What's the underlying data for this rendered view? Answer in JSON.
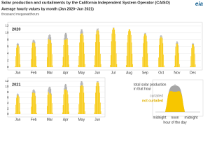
{
  "logo": "eia",
  "title": "Solar production and curtailments by the California Independent System Operator (CAISO)",
  "subtitle": "Average hourly values by month (Jan 2020–Jun 2021)",
  "unit": "thousand megawatthours",
  "chart_data": [
    {
      "type": "bar",
      "stacked": true,
      "label": "2020",
      "categories": [
        "Jan",
        "Feb",
        "Mar",
        "Apr",
        "May",
        "Jun",
        "Jul",
        "Aug",
        "Sep",
        "Oct",
        "Nov",
        "Dec"
      ],
      "ylim": [
        0,
        12
      ],
      "yticks": [
        0,
        2,
        4,
        6,
        8,
        10,
        12
      ],
      "grid": true,
      "series": [
        {
          "name": "not curtailed",
          "color": "#f7c600",
          "values": [
            [
              0,
              0,
              0,
              0,
              0,
              0,
              0,
              0.4,
              3.2,
              5.5,
              6.3,
              6.5,
              6.5,
              6.3,
              5.7,
              3.8,
              0.8,
              0,
              0,
              0,
              0,
              0,
              0,
              0
            ],
            [
              0,
              0,
              0,
              0,
              0,
              0,
              0,
              2.4,
              5.6,
              7.0,
              7.2,
              7.2,
              7.2,
              7.1,
              6.9,
              5.8,
              3.2,
              0.4,
              0,
              0,
              0,
              0,
              0,
              0
            ],
            [
              0,
              0,
              0,
              0,
              0,
              0,
              0,
              2.9,
              6.7,
              8.1,
              8.2,
              8.0,
              8.0,
              8.0,
              7.8,
              6.8,
              3.8,
              0.5,
              0,
              0,
              0,
              0,
              0,
              0
            ],
            [
              0,
              0,
              0,
              0,
              0,
              0,
              0.5,
              3.0,
              6.5,
              7.9,
              8.1,
              8.0,
              8.0,
              8.2,
              8.3,
              8.1,
              6.5,
              3.5,
              0.8,
              0,
              0,
              0,
              0,
              0
            ],
            [
              0,
              0,
              0,
              0,
              0,
              0,
              0.6,
              3.3,
              7.2,
              9.0,
              9.6,
              9.8,
              9.8,
              9.9,
              9.7,
              9.1,
              7.2,
              3.9,
              0.9,
              0,
              0,
              0,
              0,
              0
            ],
            [
              0,
              0,
              0,
              0,
              0,
              0,
              0.6,
              3.4,
              7.3,
              9.4,
              10.3,
              10.7,
              10.7,
              10.8,
              10.3,
              9.4,
              7.3,
              3.9,
              0.9,
              0,
              0,
              0,
              0,
              0
            ],
            [
              0,
              0,
              0,
              0,
              0,
              0,
              0.6,
              3.5,
              7.5,
              9.8,
              10.8,
              11.4,
              11.4,
              11.4,
              10.8,
              9.7,
              7.5,
              4.0,
              0.9,
              0,
              0,
              0,
              0,
              0
            ],
            [
              0,
              0,
              0,
              0,
              0,
              0,
              0.6,
              3.3,
              7.2,
              9.4,
              10.5,
              11,
              11,
              11,
              10.5,
              9.4,
              7.2,
              3.9,
              0.9,
              0,
              0,
              0,
              0,
              0
            ],
            [
              0,
              0,
              0,
              0,
              0,
              0,
              0,
              3.0,
              7.0,
              8.9,
              9.5,
              9.7,
              9.7,
              9.5,
              9.0,
              7.4,
              4.0,
              0.5,
              0,
              0,
              0,
              0,
              0,
              0
            ],
            [
              0,
              0,
              0,
              0,
              0,
              0,
              0,
              2.8,
              6.5,
              8.2,
              8.6,
              8.8,
              8.8,
              8.6,
              8.3,
              6.9,
              3.7,
              0.5,
              0,
              0,
              0,
              0,
              0,
              0
            ],
            [
              0,
              0,
              0,
              0,
              0,
              0,
              0,
              0.4,
              3.4,
              5.8,
              6.7,
              6.9,
              6.9,
              6.7,
              6.0,
              4.0,
              0.9,
              0,
              0,
              0,
              0,
              0,
              0,
              0
            ],
            [
              0,
              0,
              0,
              0,
              0,
              0,
              0,
              0.4,
              3.2,
              5.5,
              6.5,
              6.7,
              6.7,
              6.5,
              5.8,
              3.8,
              0.8,
              0,
              0,
              0,
              0,
              0,
              0,
              0
            ]
          ]
        },
        {
          "name": "curtailed",
          "color": "#a6a6a6",
          "values": [
            [
              0,
              0,
              0,
              0,
              0,
              0,
              0,
              0,
              0,
              0.2,
              0.4,
              0.5,
              0.5,
              0.5,
              0.3,
              0.1,
              0,
              0,
              0,
              0,
              0,
              0,
              0,
              0
            ],
            [
              0,
              0,
              0,
              0,
              0,
              0,
              0,
              0,
              0,
              0.2,
              0.6,
              0.8,
              0.8,
              0.7,
              0.5,
              0.2,
              0,
              0,
              0,
              0,
              0,
              0,
              0,
              0
            ],
            [
              0,
              0,
              0,
              0,
              0,
              0,
              0,
              0,
              0,
              0.5,
              1.1,
              1.5,
              1.5,
              1.4,
              0.9,
              0.3,
              0,
              0,
              0,
              0,
              0,
              0,
              0,
              0
            ],
            [
              0,
              0,
              0,
              0,
              0,
              0,
              0,
              0,
              0,
              0.6,
              1.4,
              2,
              2,
              1.8,
              1.2,
              0.4,
              0,
              0,
              0,
              0,
              0,
              0,
              0,
              0
            ],
            [
              0,
              0,
              0,
              0,
              0,
              0,
              0,
              0,
              0,
              0.4,
              0.8,
              1.2,
              1.2,
              1.1,
              0.7,
              0.2,
              0,
              0,
              0,
              0,
              0,
              0,
              0,
              0
            ],
            [
              0,
              0,
              0,
              0,
              0,
              0,
              0,
              0,
              0,
              0.2,
              0.4,
              0.5,
              0.5,
              0.5,
              0.3,
              0.1,
              0,
              0,
              0,
              0,
              0,
              0,
              0,
              0
            ],
            [
              0,
              0,
              0,
              0,
              0,
              0,
              0,
              0,
              0,
              0,
              0.1,
              0.1,
              0.1,
              0.1,
              0.1,
              0,
              0,
              0,
              0,
              0,
              0,
              0,
              0,
              0
            ],
            [
              0,
              0,
              0,
              0,
              0,
              0,
              0,
              0,
              0,
              0,
              0,
              0,
              0,
              0,
              0,
              0,
              0,
              0,
              0,
              0,
              0,
              0,
              0,
              0
            ],
            [
              0,
              0,
              0,
              0,
              0,
              0,
              0,
              0,
              0,
              0.1,
              0.2,
              0.3,
              0.3,
              0.3,
              0.2,
              0.1,
              0,
              0,
              0,
              0,
              0,
              0,
              0,
              0
            ],
            [
              0,
              0,
              0,
              0,
              0,
              0,
              0,
              0,
              0,
              0.2,
              0.4,
              0.5,
              0.5,
              0.5,
              0.3,
              0.1,
              0,
              0,
              0,
              0,
              0,
              0,
              0,
              0
            ],
            [
              0,
              0,
              0,
              0,
              0,
              0,
              0,
              0,
              0,
              0.2,
              0.4,
              0.6,
              0.6,
              0.5,
              0.4,
              0.1,
              0,
              0,
              0,
              0,
              0,
              0,
              0,
              0
            ],
            [
              0,
              0,
              0,
              0,
              0,
              0,
              0,
              0,
              0,
              0.1,
              0.2,
              0.3,
              0.3,
              0.3,
              0.2,
              0.1,
              0,
              0,
              0,
              0,
              0,
              0,
              0,
              0
            ]
          ]
        }
      ]
    },
    {
      "type": "bar",
      "stacked": true,
      "label": "2021",
      "categories": [
        "Jan",
        "Feb",
        "Mar",
        "Apr",
        "May",
        "Jun"
      ],
      "ylim": [
        0,
        12
      ],
      "yticks": [
        0,
        2,
        4,
        6,
        8,
        10,
        12
      ],
      "grid": true,
      "series": [
        {
          "name": "not curtailed",
          "color": "#f7c600",
          "values": [
            [
              0,
              0,
              0,
              0,
              0,
              0,
              0,
              0.4,
              3.4,
              5.8,
              6.7,
              6.9,
              6.9,
              6.7,
              6.0,
              4.0,
              0.9,
              0,
              0,
              0,
              0,
              0,
              0,
              0
            ],
            [
              0,
              0,
              0,
              0,
              0,
              0,
              0,
              2.7,
              6.3,
              7.7,
              7.9,
              7.8,
              7.8,
              7.7,
              7.6,
              6.5,
              3.6,
              0.5,
              0,
              0,
              0,
              0,
              0,
              0
            ],
            [
              0,
              0,
              0,
              0,
              0,
              0,
              0,
              3.0,
              7.0,
              8.2,
              7.9,
              7.5,
              7.5,
              7.5,
              7.7,
              7.0,
              4.0,
              0.5,
              0,
              0,
              0,
              0,
              0,
              0
            ],
            [
              0,
              0,
              0,
              0,
              0,
              0,
              0.6,
              3.3,
              7.2,
              8.8,
              9.1,
              9,
              9,
              9,
              8.7,
              8.2,
              7.2,
              3.9,
              0.9,
              0,
              0,
              0,
              0,
              0
            ],
            [
              0,
              0,
              0,
              0,
              0,
              0,
              0.6,
              3.6,
              7.8,
              9.7,
              10.3,
              10.5,
              10.5,
              10.5,
              10.5,
              9.9,
              7.8,
              4.2,
              1.0,
              0,
              0,
              0,
              0,
              0
            ],
            [
              0,
              0,
              0,
              0,
              0,
              0,
              0.6,
              3.6,
              7.8,
              10.1,
              11.2,
              11.7,
              11.7,
              11.7,
              11.2,
              10.1,
              7.8,
              4.2,
              1.0,
              0,
              0,
              0,
              0,
              0
            ]
          ]
        },
        {
          "name": "curtailed",
          "color": "#a6a6a6",
          "values": [
            [
              0,
              0,
              0,
              0,
              0,
              0,
              0,
              0,
              0,
              0.2,
              0.4,
              0.6,
              0.6,
              0.5,
              0.4,
              0.1,
              0,
              0,
              0,
              0,
              0,
              0,
              0,
              0
            ],
            [
              0,
              0,
              0,
              0,
              0,
              0,
              0,
              0,
              0,
              0.4,
              0.8,
              1.2,
              1.2,
              1.1,
              0.7,
              0.2,
              0,
              0,
              0,
              0,
              0,
              0,
              0,
              0
            ],
            [
              0,
              0,
              0,
              0,
              0,
              0,
              0,
              0,
              0,
              0.8,
              1.8,
              2.5,
              2.5,
              2.3,
              1.5,
              0.5,
              0,
              0,
              0,
              0,
              0,
              0,
              0,
              0
            ],
            [
              0,
              0,
              0,
              0,
              0,
              0,
              0,
              0,
              0,
              0.6,
              1.4,
              2,
              2,
              1.8,
              1.2,
              0.4,
              0,
              0,
              0,
              0,
              0,
              0,
              0,
              0
            ],
            [
              0,
              0,
              0,
              0,
              0,
              0,
              0,
              0,
              0,
              0.5,
              1.1,
              1.5,
              1.5,
              1.4,
              0.9,
              0.3,
              0,
              0,
              0,
              0,
              0,
              0,
              0,
              0
            ],
            [
              0,
              0,
              0,
              0,
              0,
              0,
              0,
              0,
              0,
              0.1,
              0.2,
              0.3,
              0.3,
              0.3,
              0.2,
              0.1,
              0,
              0,
              0,
              0,
              0,
              0,
              0,
              0
            ]
          ]
        }
      ]
    }
  ],
  "key": {
    "total": [
      "total solar production",
      "in that hour"
    ],
    "hours": [
      "midnight",
      "noon",
      "midnight"
    ],
    "axis": "hour of the day"
  }
}
